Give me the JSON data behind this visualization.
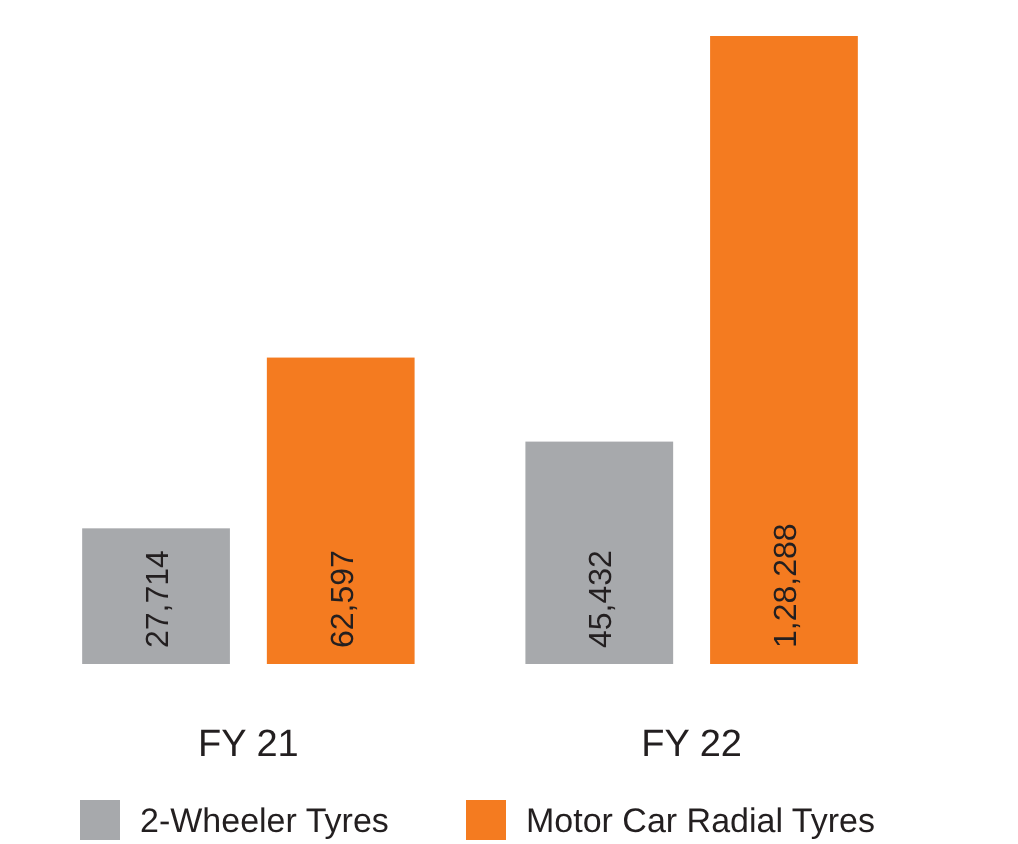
{
  "chart_data": {
    "type": "bar",
    "categories": [
      "FY 21",
      "FY 22"
    ],
    "series": [
      {
        "name": "2-Wheeler Tyres",
        "color": "#a7a9ac",
        "values": [
          27714,
          45432
        ],
        "value_labels": [
          "27,714",
          "45,432"
        ]
      },
      {
        "name": "Motor Car Radial Tyres",
        "color": "#f47b20",
        "values": [
          62597,
          128288
        ],
        "value_labels": [
          "62,597",
          "1,28,288"
        ]
      }
    ],
    "legend": "bottom"
  }
}
